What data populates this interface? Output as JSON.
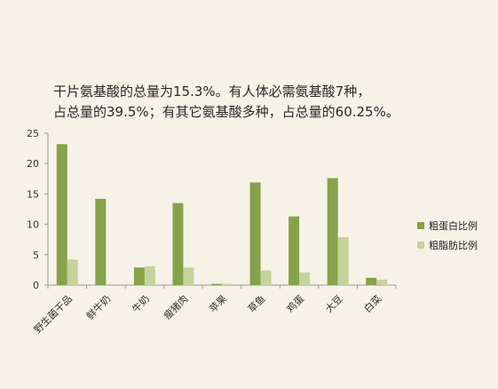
{
  "annotation": {
    "line1": "干片氨基酸的总量为15.3%。有人体必需氨基酸7种，",
    "line2": "占总量的39.5%；有其它氨基酸多种，占总量的60.25%。"
  },
  "colors": {
    "protein": "#86a24a",
    "fat": "#c4d49c",
    "axis": "#9a9a9a",
    "background": "#f6f2e8"
  },
  "chart_data": {
    "type": "bar",
    "categories": [
      "野生菌干品",
      "鲜牛奶",
      "牛奶",
      "瘦猪肉",
      "苹果",
      "草鱼",
      "鸡蛋",
      "大豆",
      "白菜"
    ],
    "series": [
      {
        "name": "粗蛋白比例",
        "values": [
          23.2,
          14.2,
          2.9,
          13.5,
          0.2,
          16.9,
          11.3,
          17.6,
          1.2
        ]
      },
      {
        "name": "粗脂肪比例",
        "values": [
          4.2,
          0,
          3.1,
          2.9,
          0.2,
          2.4,
          2.1,
          7.9,
          0.9
        ]
      }
    ],
    "ylim": [
      0,
      25
    ],
    "yticks": [
      0,
      5,
      10,
      15,
      20,
      25
    ],
    "legend_position": "right",
    "grid": false
  }
}
